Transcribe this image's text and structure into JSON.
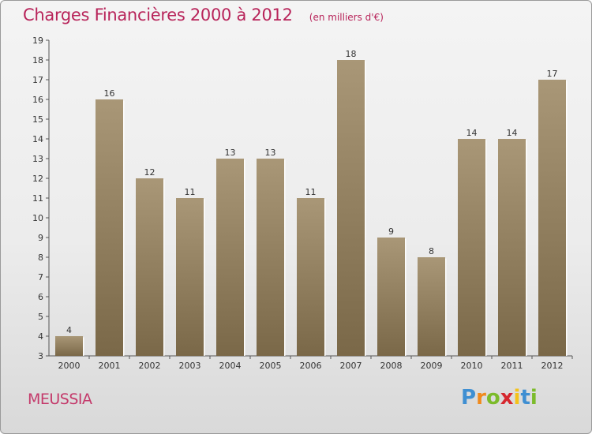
{
  "header": {
    "title": "Charges Financières 2000 à 2012",
    "unit": "(en milliers d'€)"
  },
  "footer": {
    "municipality": "MEUSSIA",
    "logo_letters": [
      "P",
      "r",
      "o",
      "x",
      "i",
      "t",
      "i"
    ],
    "logo_colors": [
      "#3f8fd2",
      "#f08a1c",
      "#7cbb2b",
      "#d6282f",
      "#f4c21a",
      "#3f8fd2",
      "#7cbb2b"
    ]
  },
  "colors": {
    "bar_top": "#a99777",
    "bar_bottom": "#7a6848",
    "accent": "#b8245a"
  },
  "chart_data": {
    "type": "bar",
    "title": "Charges Financières 2000 à 2012",
    "subtitle": "(en milliers d'€)",
    "categories": [
      "2000",
      "2001",
      "2002",
      "2003",
      "2004",
      "2005",
      "2006",
      "2007",
      "2008",
      "2009",
      "2010",
      "2011",
      "2012"
    ],
    "values": [
      4,
      16,
      12,
      11,
      13,
      13,
      11,
      18,
      9,
      8,
      14,
      14,
      17
    ],
    "ylim": [
      3,
      19
    ],
    "yticks": [
      3,
      4,
      5,
      6,
      7,
      8,
      9,
      10,
      11,
      12,
      13,
      14,
      15,
      16,
      17,
      18,
      19
    ],
    "grid": false,
    "data_labels": true
  }
}
